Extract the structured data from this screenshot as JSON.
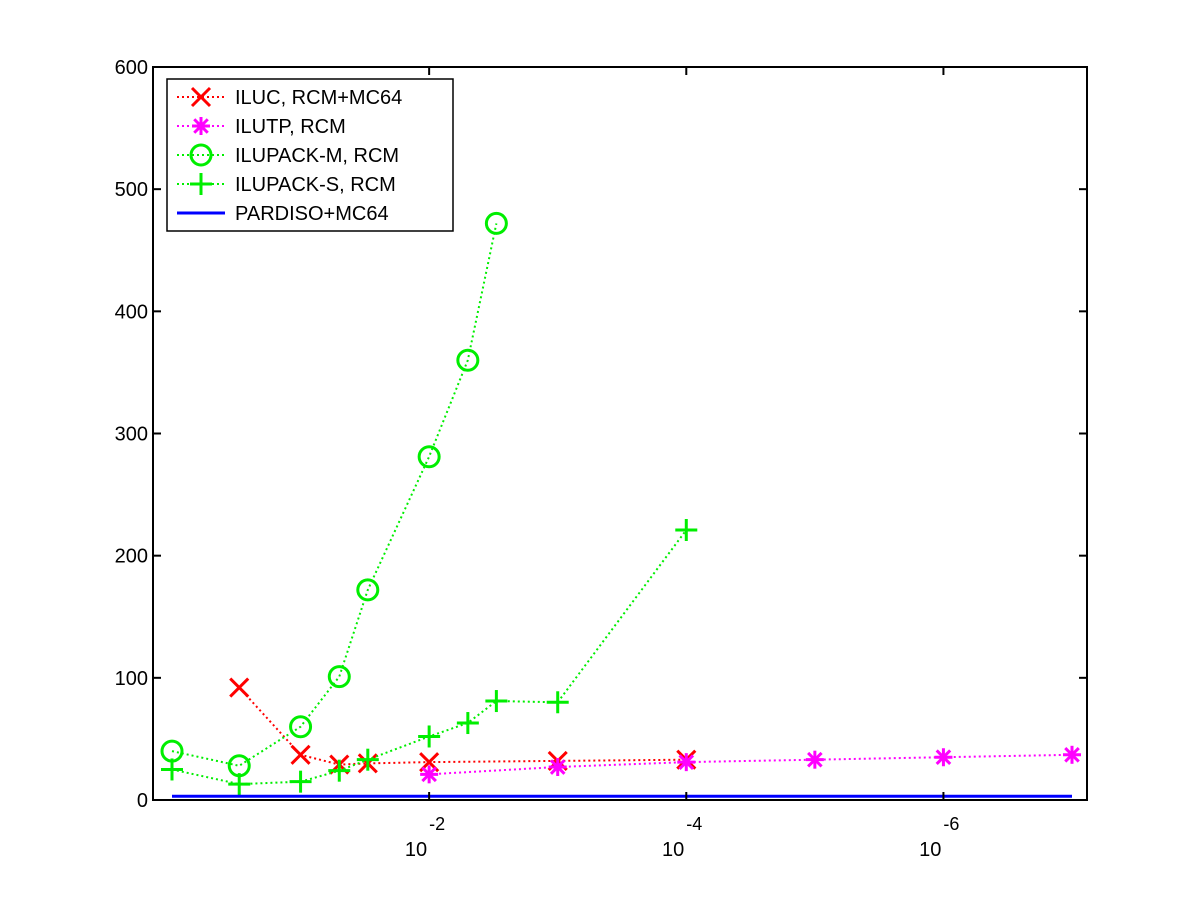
{
  "chart_data": {
    "type": "line",
    "title": "",
    "xlabel": "",
    "ylabel": "",
    "x_scale": "log",
    "x_reversed": true,
    "xlim": [
      1,
      1e-07
    ],
    "ylim": [
      0,
      600
    ],
    "grid": false,
    "legend_position": "top-left",
    "x_ticks": [
      {
        "value": 0.01,
        "base": "10",
        "exponent": "-2"
      },
      {
        "value": 0.0001,
        "base": "10",
        "exponent": "-4"
      },
      {
        "value": 1e-06,
        "base": "10",
        "exponent": "-6"
      }
    ],
    "y_ticks": [
      {
        "value": 0,
        "label": "0"
      },
      {
        "value": 100,
        "label": "100"
      },
      {
        "value": 200,
        "label": "200"
      },
      {
        "value": 300,
        "label": "300"
      },
      {
        "value": 400,
        "label": "400"
      },
      {
        "value": 500,
        "label": "500"
      },
      {
        "value": 600,
        "label": "600"
      }
    ],
    "series": [
      {
        "name": "ILUC, RCM+MC64",
        "color": "#ff0000",
        "marker": "x",
        "line": "dotted",
        "points": [
          {
            "x": 0.3,
            "y": 92
          },
          {
            "x": 0.1,
            "y": 37
          },
          {
            "x": 0.05,
            "y": 29
          },
          {
            "x": 0.03,
            "y": 30
          },
          {
            "x": 0.01,
            "y": 31
          },
          {
            "x": 0.001,
            "y": 32
          },
          {
            "x": 0.0001,
            "y": 33
          }
        ]
      },
      {
        "name": "ILUTP, RCM",
        "color": "#ff00ff",
        "marker": "asterisk",
        "line": "dotted",
        "points": [
          {
            "x": 0.01,
            "y": 21
          },
          {
            "x": 0.001,
            "y": 27
          },
          {
            "x": 0.0001,
            "y": 31
          },
          {
            "x": 1e-05,
            "y": 33
          },
          {
            "x": 1e-06,
            "y": 35
          },
          {
            "x": 1e-07,
            "y": 37
          }
        ]
      },
      {
        "name": "ILUPACK-M, RCM",
        "color": "#00ee00",
        "marker": "circle",
        "line": "dotted",
        "points": [
          {
            "x": 1,
            "y": 40
          },
          {
            "x": 0.3,
            "y": 28
          },
          {
            "x": 0.1,
            "y": 60
          },
          {
            "x": 0.05,
            "y": 101
          },
          {
            "x": 0.03,
            "y": 172
          },
          {
            "x": 0.01,
            "y": 281
          },
          {
            "x": 0.005,
            "y": 360
          },
          {
            "x": 0.003,
            "y": 472
          }
        ]
      },
      {
        "name": "ILUPACK-S, RCM",
        "color": "#00ee00",
        "marker": "plus",
        "line": "dotted",
        "points": [
          {
            "x": 1,
            "y": 25
          },
          {
            "x": 0.3,
            "y": 13
          },
          {
            "x": 0.1,
            "y": 15
          },
          {
            "x": 0.05,
            "y": 24
          },
          {
            "x": 0.03,
            "y": 33
          },
          {
            "x": 0.01,
            "y": 52
          },
          {
            "x": 0.005,
            "y": 63
          },
          {
            "x": 0.003,
            "y": 81
          },
          {
            "x": 0.001,
            "y": 80
          },
          {
            "x": 0.0001,
            "y": 221
          }
        ]
      },
      {
        "name": "PARDISO+MC64",
        "color": "#0000ff",
        "marker": "none",
        "line": "solid",
        "points": [
          {
            "x": 1,
            "y": 3
          },
          {
            "x": 1e-07,
            "y": 3
          }
        ]
      }
    ]
  }
}
